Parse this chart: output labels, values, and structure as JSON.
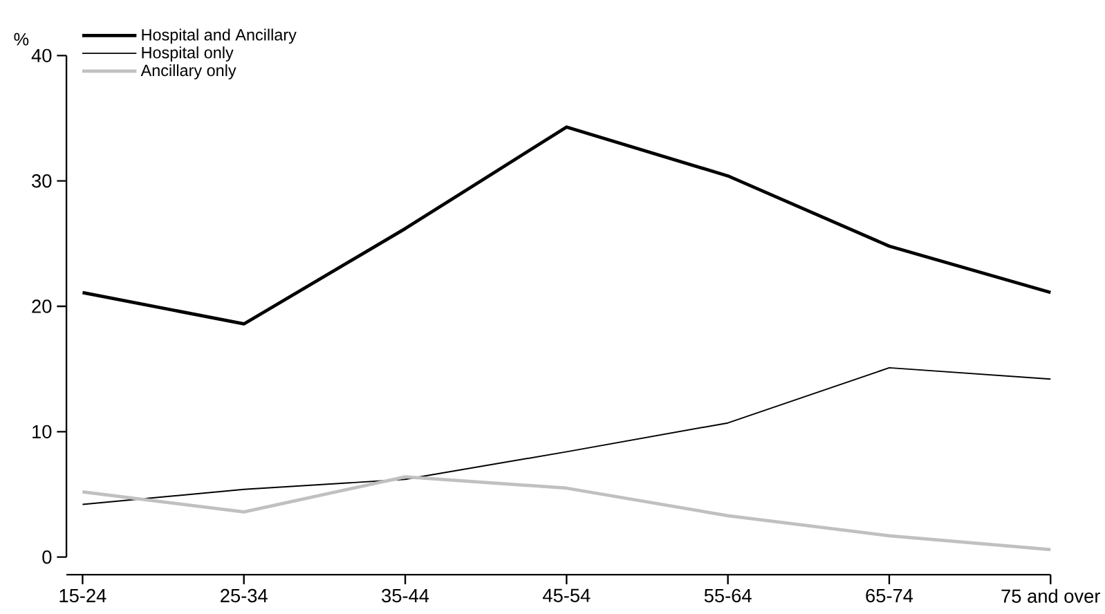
{
  "chart_data": {
    "type": "line",
    "ylabel": "%",
    "categories": [
      "15-24",
      "25-34",
      "35-44",
      "45-54",
      "55-64",
      "65-74",
      "75 and over"
    ],
    "series": [
      {
        "name": "Hospital and Ancillary",
        "color": "#000000",
        "values": [
          21.1,
          18.6,
          26.2,
          34.3,
          30.4,
          24.8,
          21.1
        ]
      },
      {
        "name": "Hospital only",
        "color": "#000000",
        "values": [
          4.2,
          5.4,
          6.2,
          8.4,
          10.7,
          15.1,
          14.2
        ]
      },
      {
        "name": "Ancillary only",
        "color": "#c0c0c0",
        "values": [
          5.2,
          3.6,
          6.4,
          5.5,
          3.3,
          1.7,
          0.6
        ]
      }
    ],
    "ylim": [
      0,
      40
    ],
    "yticks": [
      0,
      10,
      20,
      30,
      40
    ],
    "legend": "top left"
  }
}
